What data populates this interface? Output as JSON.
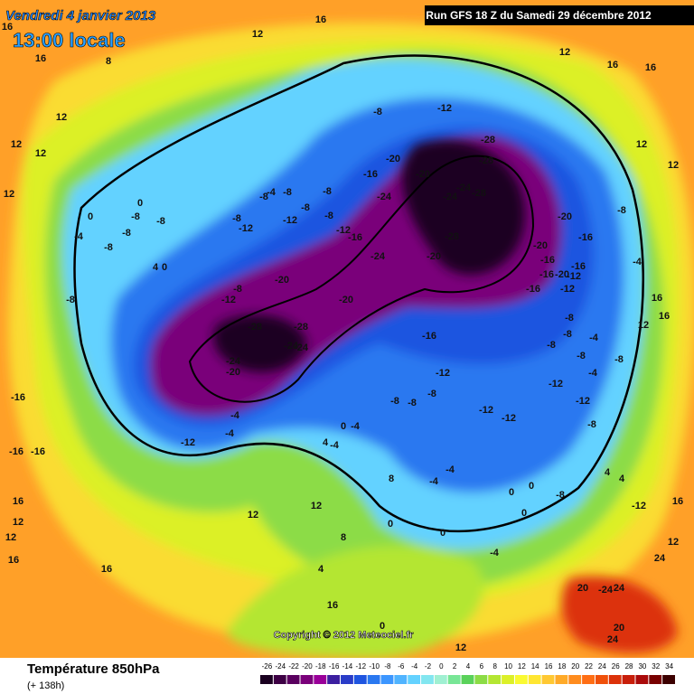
{
  "header": {
    "date": "Vendredi 4 janvier 2013",
    "time": "13:00 locale",
    "run": "Run GFS 18 Z du Samedi 29 décembre 2012"
  },
  "footer": {
    "title": "Température 850hPa",
    "lead": "(+ 138h)",
    "copyright": "Copyright © 2012 Meteociel.fr"
  },
  "scale": {
    "ticks": [
      -26,
      -24,
      -22,
      -20,
      -18,
      -16,
      -14,
      -12,
      -10,
      -8,
      -6,
      -4,
      -2,
      0,
      2,
      4,
      6,
      8,
      10,
      12,
      14,
      16,
      18,
      20,
      22,
      24,
      26,
      28,
      30,
      32,
      34
    ],
    "colors": [
      "#1a0020",
      "#3d0044",
      "#5a005f",
      "#7a007a",
      "#9a0099",
      "#3c1fa0",
      "#2a3cc8",
      "#1f55e0",
      "#2a78f0",
      "#3c96ff",
      "#50b4ff",
      "#64d2ff",
      "#82e6f0",
      "#a0f0d2",
      "#78e696",
      "#5ad25a",
      "#8cdc46",
      "#b4e632",
      "#dcf028",
      "#fafa32",
      "#ffe632",
      "#ffc832",
      "#ffaa28",
      "#ff8c1e",
      "#ff6e14",
      "#f0500a",
      "#dc320a",
      "#c81e0a",
      "#aa0a0a",
      "#780000",
      "#3c0000"
    ]
  },
  "map": {
    "labels": [
      16,
      16,
      8,
      12,
      12,
      12,
      12,
      16,
      12,
      12,
      16,
      16,
      -12,
      -8,
      -28,
      -20,
      -16,
      -24,
      -20,
      -24,
      -24,
      -28,
      -28,
      -28,
      -24,
      -20,
      -20,
      -20,
      -16,
      -16,
      -16,
      -20,
      -12,
      -16,
      -16,
      -12,
      -8,
      12,
      12,
      -4,
      -8,
      -8,
      -8,
      -8,
      -4,
      -8,
      -4,
      -12,
      -12,
      -8,
      -12,
      -12,
      -12,
      -16,
      -8,
      -8,
      -8,
      -20,
      -20,
      -28,
      -28,
      -24,
      -24,
      -24,
      -20,
      -4,
      -4,
      -12,
      0,
      -4,
      4,
      -4,
      -4,
      -4,
      0,
      0,
      0,
      0,
      0,
      -4,
      -8,
      4,
      4,
      -12,
      16,
      16,
      12,
      12,
      16,
      16,
      12,
      12,
      8,
      8,
      4,
      16,
      12,
      0,
      20,
      -24,
      24,
      20,
      24,
      24,
      12,
      12,
      16,
      16,
      -16,
      -16,
      -16,
      -4,
      -8,
      -8,
      -8,
      -12,
      -12,
      -8,
      -8,
      -8,
      -12,
      -16,
      0,
      0,
      -8,
      -8,
      -4,
      -8,
      -8,
      4,
      0,
      -8,
      -12,
      -8
    ]
  }
}
